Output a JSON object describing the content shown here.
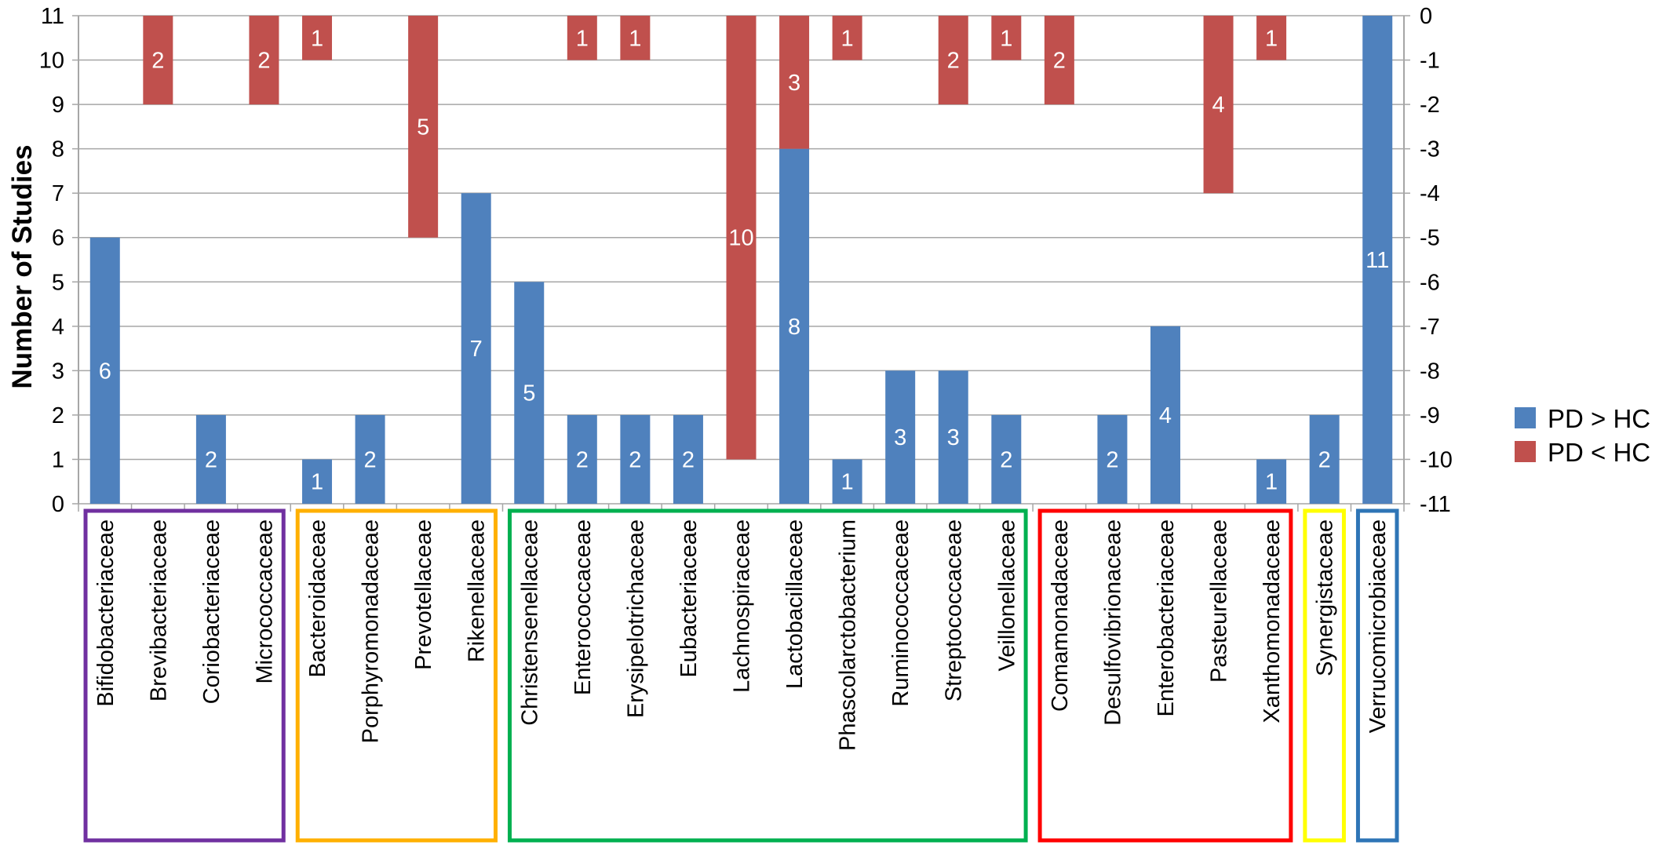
{
  "chart_data": {
    "type": "bar",
    "ylabel": "Number of Studies",
    "ylim": [
      0,
      11
    ],
    "y2lim": [
      -11,
      0
    ],
    "yticks": [
      "0",
      "1",
      "2",
      "3",
      "4",
      "5",
      "6",
      "7",
      "8",
      "9",
      "10",
      "11"
    ],
    "y2ticks": [
      "0",
      "-1",
      "-2",
      "-3",
      "-4",
      "-5",
      "-6",
      "-7",
      "-8",
      "-9",
      "-10",
      "-11"
    ],
    "grid": true,
    "legend_position": "right",
    "categories": [
      "Bifidobacteriaceae",
      "Brevibacteriaceae",
      "Coriobacteriaceae",
      "Micrococcaceae",
      "Bacteroidaceae",
      "Porphyromonadaceae",
      "Prevotellaceae",
      "Rikenellaceae",
      "Christensenellaceae",
      "Enterococcaceae",
      "Erysipelotrichaceae",
      "Eubacteriaceae",
      "Lachnospiraceae",
      "Lactobacillaceae",
      "Phascolarctobacterium",
      "Ruminococcaceae",
      "Streptococcaceae",
      "Veillonellaceae",
      "Comamonadaceae",
      "Desulfovibrionaceae",
      "Enterobacteriaceae",
      "Pasteurellaceae",
      "Xanthomonadaceae",
      "Synergistaceae",
      "Verrucomicrobiaceae"
    ],
    "series": [
      {
        "name": "PD > HC",
        "color": "#4F81BD",
        "axis": "left",
        "labels": [
          "6",
          "",
          "2",
          "",
          "1",
          "2",
          "",
          "7",
          "5",
          "2",
          "2",
          "2",
          "",
          "8",
          "1",
          "3",
          "3",
          "2",
          "",
          "2",
          "4",
          "",
          "1",
          "2",
          "11"
        ],
        "values": [
          6,
          0,
          2,
          0,
          1,
          2,
          0,
          7,
          5,
          2,
          2,
          2,
          0,
          8,
          1,
          3,
          3,
          2,
          0,
          2,
          4,
          0,
          1,
          2,
          11
        ]
      },
      {
        "name": "PD < HC",
        "color": "#C0504D",
        "axis": "right",
        "labels": [
          "",
          "2",
          "",
          "2",
          "1",
          "",
          "5",
          "",
          "",
          "1",
          "1",
          "",
          "10",
          "3",
          "1",
          "",
          "2",
          "1",
          "2",
          "",
          "",
          "4",
          "1",
          "",
          ""
        ],
        "values": [
          0,
          -2,
          0,
          -2,
          -1,
          0,
          -5,
          0,
          0,
          -1,
          -1,
          0,
          -10,
          -3,
          -1,
          0,
          -2,
          -1,
          -2,
          0,
          0,
          -4,
          -1,
          0,
          0
        ]
      }
    ],
    "groups": [
      {
        "color": "#7030A0",
        "start": 0,
        "end": 3
      },
      {
        "color": "#FFB000",
        "start": 4,
        "end": 7
      },
      {
        "color": "#00B050",
        "start": 8,
        "end": 17
      },
      {
        "color": "#FF0000",
        "start": 18,
        "end": 22
      },
      {
        "color": "#FFFF00",
        "start": 23,
        "end": 23
      },
      {
        "color": "#2E75B6",
        "start": 24,
        "end": 24
      }
    ],
    "gridColor": "#A6A6A6"
  }
}
